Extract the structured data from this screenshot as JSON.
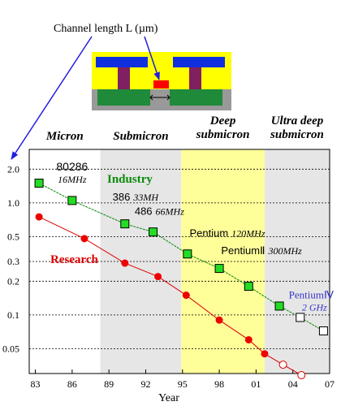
{
  "annotation": {
    "channel_label": "Channel length L (µm)"
  },
  "chart_data": {
    "type": "scatter",
    "title": "",
    "xlabel": "Year",
    "ylabel": "",
    "y_scale": "log",
    "x_tick_labels": [
      "83",
      "86",
      "89",
      "92",
      "95",
      "98",
      "01",
      "04",
      "07"
    ],
    "x_tick_values": [
      1983,
      1986,
      1989,
      1992,
      1995,
      1998,
      2001,
      2004,
      2007
    ],
    "y_tick_labels": [
      "2.0",
      "1.0",
      "0.5",
      "0.3",
      "0.2",
      "0.1",
      "0.05"
    ],
    "y_tick_values": [
      2.0,
      1.0,
      0.5,
      0.3,
      0.2,
      0.1,
      0.05
    ],
    "xlim": [
      1982.5,
      2007
    ],
    "ylim": [
      0.03,
      3.0
    ],
    "regions": [
      {
        "label": "Micron",
        "from": 1982.5,
        "to": 1988.3,
        "color": "#ffffff"
      },
      {
        "label": "Submicron",
        "from": 1988.3,
        "to": 1994.9,
        "color": "#e6e6e6"
      },
      {
        "label": "Deep submicron",
        "from": 1994.9,
        "to": 2001.7,
        "color": "#ffff99"
      },
      {
        "label": "Ultra deep submicron",
        "from": 2001.7,
        "to": 2007,
        "color": "#e6e6e6"
      }
    ],
    "series": [
      {
        "name": "Industry",
        "color": "#0a8a0a",
        "marker": "square",
        "x": [
          1983.3,
          1986.0,
          1990.3,
          1992.6,
          1995.4,
          1998.0,
          2000.4,
          2002.9,
          2004.6,
          2006.5
        ],
        "y": [
          1.5,
          1.05,
          0.65,
          0.55,
          0.35,
          0.26,
          0.18,
          0.12,
          0.095,
          0.072
        ],
        "hollow_from_index": 8
      },
      {
        "name": "Research",
        "color": "#dd0000",
        "marker": "circle",
        "x": [
          1983.3,
          1987.0,
          1990.3,
          1993.0,
          1995.3,
          1998.0,
          2000.4,
          2001.7,
          2003.2,
          2004.7
        ],
        "y": [
          0.75,
          0.48,
          0.29,
          0.22,
          0.15,
          0.09,
          0.06,
          0.045,
          0.036,
          0.029
        ],
        "hollow_from_index": 8
      }
    ],
    "point_labels": [
      {
        "name": "80286",
        "detail": "16MHz",
        "x": 1986.0,
        "y": 1.95
      },
      {
        "name": "386",
        "detail": "33MH",
        "x": 1991.0,
        "y": 1.05
      },
      {
        "name": "486",
        "detail": "66MHz",
        "x": 1992.8,
        "y": 0.78
      },
      {
        "name": "Pentium",
        "detail": "120MHz",
        "x": 1999.0,
        "y": 0.5
      },
      {
        "name": "PentiumⅡ",
        "detail": "300MHz",
        "x": 2002.0,
        "y": 0.35
      },
      {
        "name": "PentiumⅣ",
        "detail": "2 GHz",
        "x": 2005.5,
        "y": 0.14
      }
    ],
    "annotations": [
      "Industry",
      "Research"
    ]
  }
}
